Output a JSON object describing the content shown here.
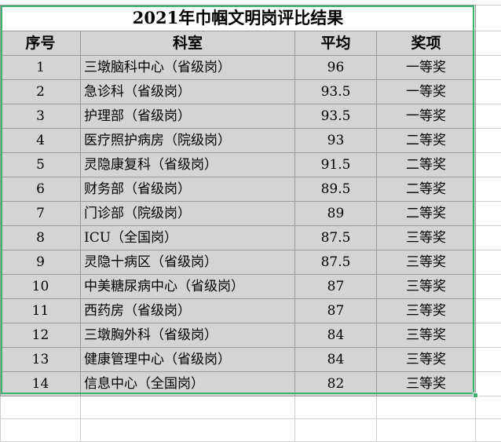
{
  "sheet": {
    "title": "2021年巾帼文明岗评比结果",
    "headers": {
      "no": "序号",
      "dept": "科室",
      "avg": "平均",
      "award": "奖项"
    },
    "rows": [
      {
        "no": "1",
        "dept": "三墩脑科中心（省级岗）",
        "avg": "96",
        "award": "一等奖"
      },
      {
        "no": "2",
        "dept": "急诊科（省级岗）",
        "avg": "93.5",
        "award": "一等奖"
      },
      {
        "no": "3",
        "dept": "护理部（省级岗）",
        "avg": "93.5",
        "award": "一等奖"
      },
      {
        "no": "4",
        "dept": "医疗照护病房（院级岗）",
        "avg": "93",
        "award": "二等奖"
      },
      {
        "no": "5",
        "dept": "灵隐康复科（省级岗）",
        "avg": "91.5",
        "award": "二等奖"
      },
      {
        "no": "6",
        "dept": "财务部（省级岗）",
        "avg": "89.5",
        "award": "二等奖"
      },
      {
        "no": "7",
        "dept": "门诊部（院级岗）",
        "avg": "89",
        "award": "二等奖"
      },
      {
        "no": "8",
        "dept": "ICU（全国岗）",
        "avg": "87.5",
        "award": "三等奖"
      },
      {
        "no": "9",
        "dept": "灵隐十病区（省级岗）",
        "avg": "87.5",
        "award": "三等奖"
      },
      {
        "no": "10",
        "dept": "中美糖尿病中心（省级岗）",
        "avg": "87",
        "award": "三等奖"
      },
      {
        "no": "11",
        "dept": "西药房（省级岗）",
        "avg": "87",
        "award": "三等奖"
      },
      {
        "no": "12",
        "dept": "三墩胸外科（省级岗）",
        "avg": "84",
        "award": "三等奖"
      },
      {
        "no": "13",
        "dept": "健康管理中心（省级岗）",
        "avg": "84",
        "award": "三等奖"
      },
      {
        "no": "14",
        "dept": "信息中心（全国岗）",
        "avg": "82",
        "award": "三等奖"
      }
    ]
  },
  "colors": {
    "cell_fill": "#d4d4d4",
    "selection": "#3cb371",
    "grid": "#9a9a9a"
  }
}
